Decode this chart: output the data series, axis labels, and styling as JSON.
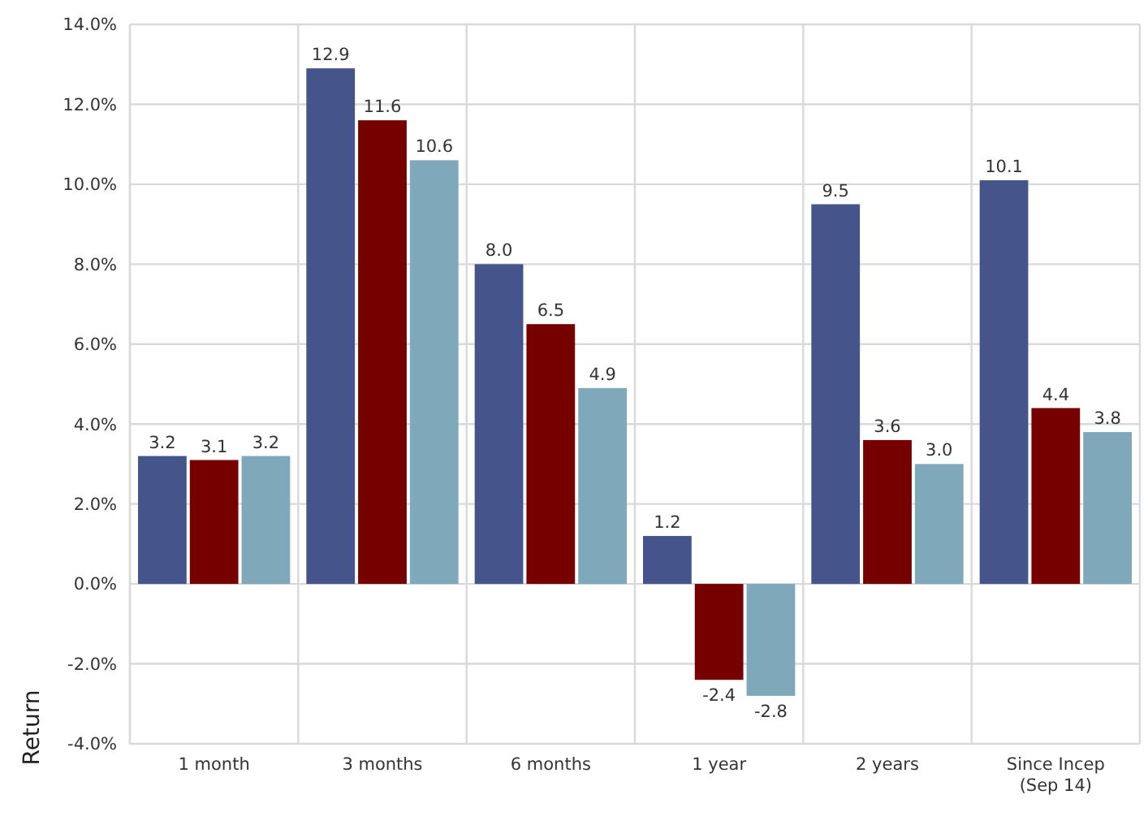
{
  "chart_data": {
    "type": "bar",
    "ylabel": "Return",
    "categories": [
      "1 month",
      "3 months",
      "6 months",
      "1 year",
      "2 years",
      "Since Incep (Sep 14)"
    ],
    "series": [
      {
        "color": "#45548a",
        "values": [
          3.2,
          12.9,
          8.0,
          1.2,
          9.5,
          10.1
        ],
        "value_labels": [
          "3.2",
          "12.9",
          "8.0",
          "1.2",
          "9.5",
          "10.1"
        ]
      },
      {
        "color": "#760000",
        "values": [
          3.1,
          11.6,
          6.5,
          -2.4,
          3.6,
          4.4
        ],
        "value_labels": [
          "3.1",
          "11.6",
          "6.5",
          "-2.4",
          "3.6",
          "4.4"
        ]
      },
      {
        "color": "#7fa9bb",
        "values": [
          3.2,
          10.6,
          4.9,
          -2.8,
          3.0,
          3.8
        ],
        "value_labels": [
          "3.2",
          "10.6",
          "4.9",
          "-2.8",
          "3.0",
          "3.8"
        ]
      }
    ],
    "ylim": [
      -4,
      14
    ],
    "yticks": [
      {
        "value": -4,
        "label": "-4.0%"
      },
      {
        "value": -2,
        "label": "-2.0%"
      },
      {
        "value": 0,
        "label": "0.0%"
      },
      {
        "value": 2,
        "label": "2.0%"
      },
      {
        "value": 4,
        "label": "4.0%"
      },
      {
        "value": 6,
        "label": "6.0%"
      },
      {
        "value": 8,
        "label": "8.0%"
      },
      {
        "value": 10,
        "label": "10.0%"
      },
      {
        "value": 12,
        "label": "12.0%"
      },
      {
        "value": 14,
        "label": "14.0%"
      }
    ],
    "grid": true
  }
}
